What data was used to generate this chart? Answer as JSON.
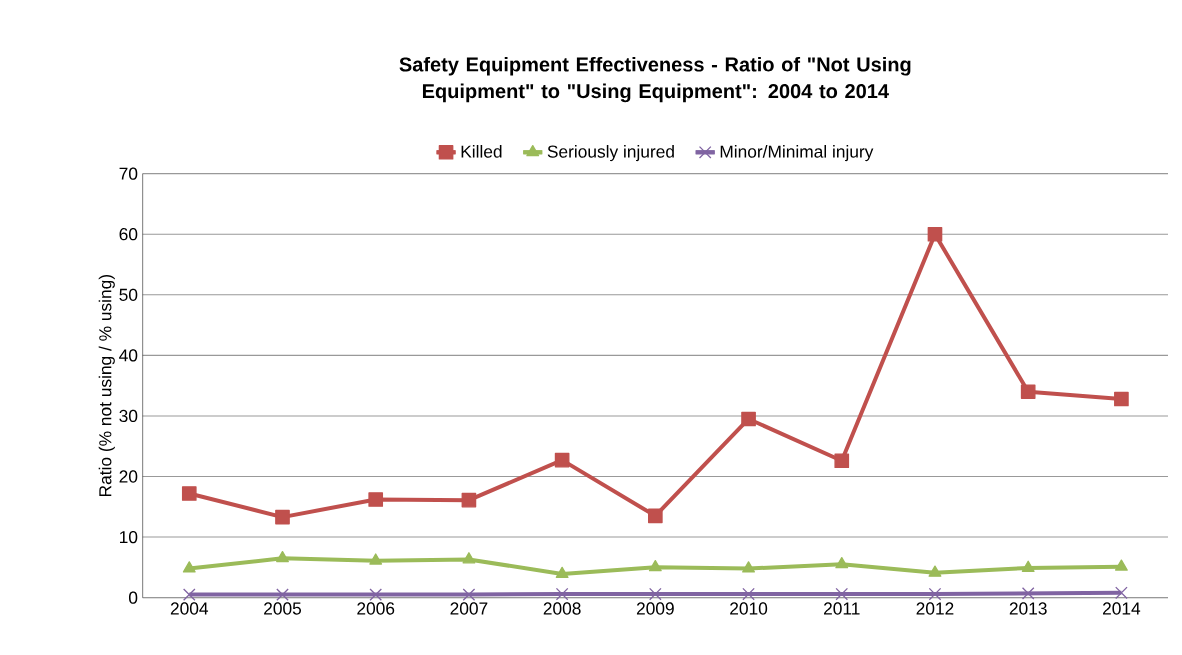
{
  "chart_data": {
    "type": "line",
    "title": "Safety Equipment Effectiveness - Ratio of \"Not Using Equipment\" to \"Using Equipment\": 2004 to 2014",
    "ylabel": "Ratio (% not using / % using)",
    "categories": [
      "2004",
      "2005",
      "2006",
      "2007",
      "2008",
      "2009",
      "2010",
      "2011",
      "2012",
      "2013",
      "2014"
    ],
    "series": [
      {
        "name": "Killed",
        "color": "#c0504d",
        "marker": "square",
        "values": [
          17.2,
          13.3,
          16.2,
          16.1,
          22.7,
          13.5,
          29.5,
          22.6,
          60,
          34.0,
          32.8
        ]
      },
      {
        "name": "Seriously injured",
        "color": "#9bbb59",
        "marker": "triangle",
        "values": [
          4.8,
          6.5,
          6.1,
          6.3,
          3.9,
          5.0,
          4.8,
          5.5,
          4.1,
          4.9,
          5.1
        ]
      },
      {
        "name": "Minor/Minimal injury",
        "color": "#8064a2",
        "marker": "cross",
        "values": [
          0.5,
          0.5,
          0.5,
          0.5,
          0.6,
          0.6,
          0.6,
          0.6,
          0.6,
          0.7,
          0.8
        ]
      }
    ],
    "ylim": [
      0,
      70
    ],
    "yticks": [
      0,
      10,
      20,
      30,
      40,
      50,
      60,
      70
    ],
    "grid": "y",
    "legend": "top",
    "line_style": "solid"
  }
}
